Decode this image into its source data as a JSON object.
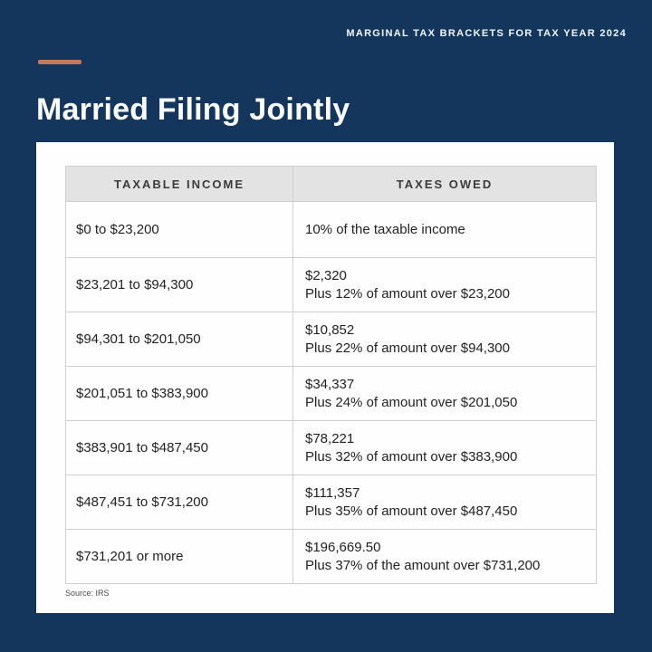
{
  "header": {
    "eyebrow": "MARGINAL TAX BRACKETS FOR TAX YEAR 2024",
    "title": "Married Filing Jointly"
  },
  "footer": {
    "source": "Source: IRS"
  },
  "colors": {
    "background": "#14365D",
    "accent_dash": "#C57954",
    "card": "#FEFEFE",
    "table_header_bg": "#E3E3E3",
    "table_border": "#CFCFCF",
    "text_dark": "#222222",
    "text_light": "#FBFCFE"
  },
  "chart_data": {
    "type": "table",
    "title": "Married Filing Jointly",
    "subtitle": "MARGINAL TAX BRACKETS FOR TAX YEAR 2024",
    "columns": [
      "TAXABLE INCOME",
      "TAXES OWED"
    ],
    "rows": [
      {
        "income": "$0 to $23,200",
        "owed1": "10% of the taxable income",
        "owed2": ""
      },
      {
        "income": "$23,201 to $94,300",
        "owed1": "$2,320",
        "owed2": "Plus 12% of amount over $23,200"
      },
      {
        "income": "$94,301 to $201,050",
        "owed1": "$10,852",
        "owed2": "Plus 22% of amount over $94,300"
      },
      {
        "income": "$201,051 to $383,900",
        "owed1": "$34,337",
        "owed2": "Plus 24% of amount over $201,050"
      },
      {
        "income": "$383,901 to $487,450",
        "owed1": "$78,221",
        "owed2": "Plus 32% of amount over $383,900"
      },
      {
        "income": "$487,451 to $731,200",
        "owed1": "$111,357",
        "owed2": "Plus 35% of amount over $487,450"
      },
      {
        "income": "$731,201 or more",
        "owed1": "$196,669.50",
        "owed2": "Plus 37% of the amount over $731,200"
      }
    ],
    "source": "Source: IRS"
  }
}
